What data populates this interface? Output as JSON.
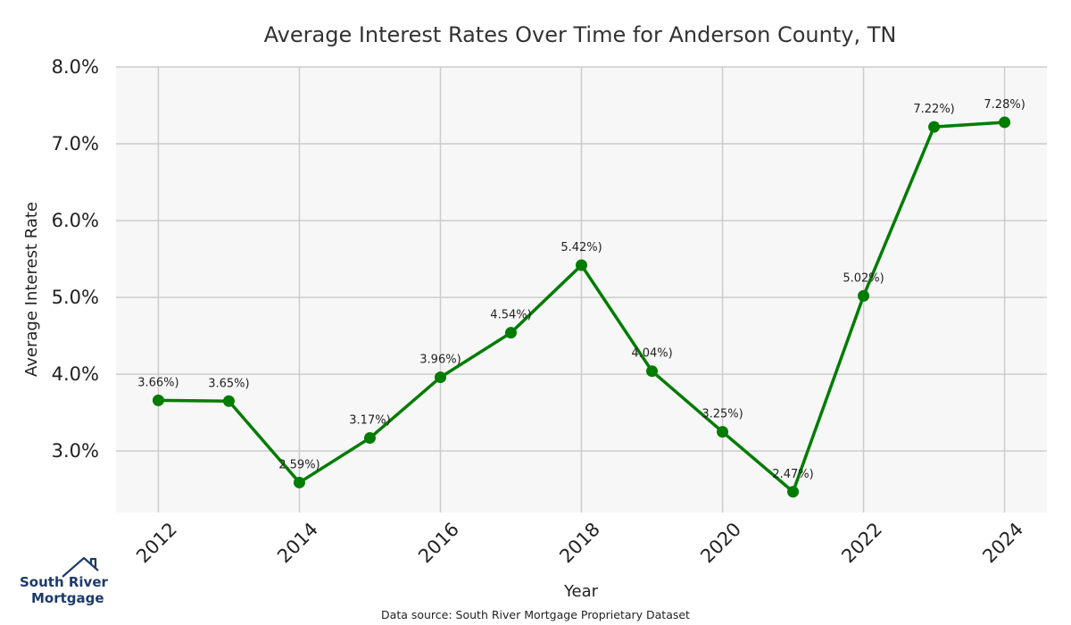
{
  "chart_data": {
    "type": "line",
    "title": "Average Interest Rates Over Time for Anderson County, TN",
    "xlabel": "Year",
    "ylabel": "Average Interest Rate",
    "x": [
      2012,
      2013,
      2014,
      2015,
      2016,
      2017,
      2018,
      2019,
      2020,
      2021,
      2022,
      2023,
      2024
    ],
    "values": [
      3.66,
      3.65,
      2.59,
      3.17,
      3.96,
      4.54,
      5.42,
      4.04,
      3.25,
      2.47,
      5.02,
      7.22,
      7.28
    ],
    "data_labels": [
      "3.66%)",
      "3.65%)",
      "2.59%)",
      "3.17%)",
      "3.96%)",
      "4.54%)",
      "5.42%)",
      "4.04%)",
      "3.25%)",
      "2.47%)",
      "5.02%)",
      "7.22%)",
      "7.28%)"
    ],
    "xticks": [
      "2012",
      "2014",
      "2016",
      "2018",
      "2020",
      "2022",
      "2024"
    ],
    "yticks": [
      "3.0%",
      "4.0%",
      "5.0%",
      "6.0%",
      "7.0%",
      "8.0%"
    ],
    "xlim": [
      2011.4,
      2024.6
    ],
    "ylim": [
      2.2,
      8.0
    ],
    "grid": true,
    "line_color": "#007c00",
    "background_color": "#f7f7f7",
    "grid_color": "#cccccc"
  },
  "source_text": "Data source: South River Mortgage Proprietary Dataset",
  "logo": {
    "line1": "South River",
    "line2": "Mortgage",
    "color": "#1d3a6b"
  }
}
